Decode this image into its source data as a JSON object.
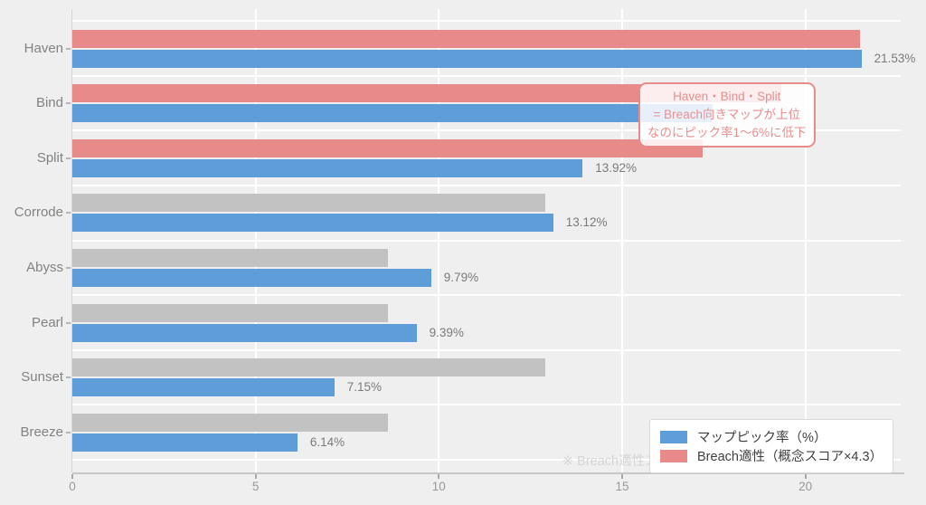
{
  "chart_data": {
    "type": "bar",
    "orientation": "horizontal",
    "title": "",
    "xlabel": "",
    "ylabel": "",
    "categories": [
      "Haven",
      "Bind",
      "Split",
      "Corrode",
      "Abyss",
      "Pearl",
      "Sunset",
      "Breeze"
    ],
    "series": [
      {
        "name": "マップピック率（%）",
        "color": "#5f9dd9",
        "values": [
          21.53,
          17.46,
          13.92,
          13.12,
          9.79,
          9.39,
          7.15,
          6.14
        ],
        "value_labels": [
          "21.53%",
          "",
          "13.92%",
          "13.12%",
          "9.79%",
          "9.39%",
          "7.15%",
          "6.14%"
        ]
      },
      {
        "name": "Breach適性（概念スコア×4.3）",
        "color": "#e8898a",
        "values": [
          21.5,
          19.35,
          17.2,
          12.9,
          8.6,
          8.6,
          12.9,
          8.6
        ],
        "bar_colors": [
          "#e8898a",
          "#e8898a",
          "#e8898a",
          "#c2c2c2",
          "#c2c2c2",
          "#c2c2c2",
          "#c2c2c2",
          "#c2c2c2"
        ]
      }
    ],
    "xlim": [
      0,
      22.6
    ],
    "xticks": [
      0,
      5,
      10,
      15,
      20
    ],
    "grid": true,
    "legend_position": "lower right",
    "annotation": {
      "lines": [
        "Haven・Bind・Split",
        "= Breach向きマップが上位",
        "なのにピック率1～6%に低下"
      ],
      "text_color": "#e8908f",
      "border_color": "#e88b8b"
    },
    "watermark": "※ Breach適性ス"
  }
}
